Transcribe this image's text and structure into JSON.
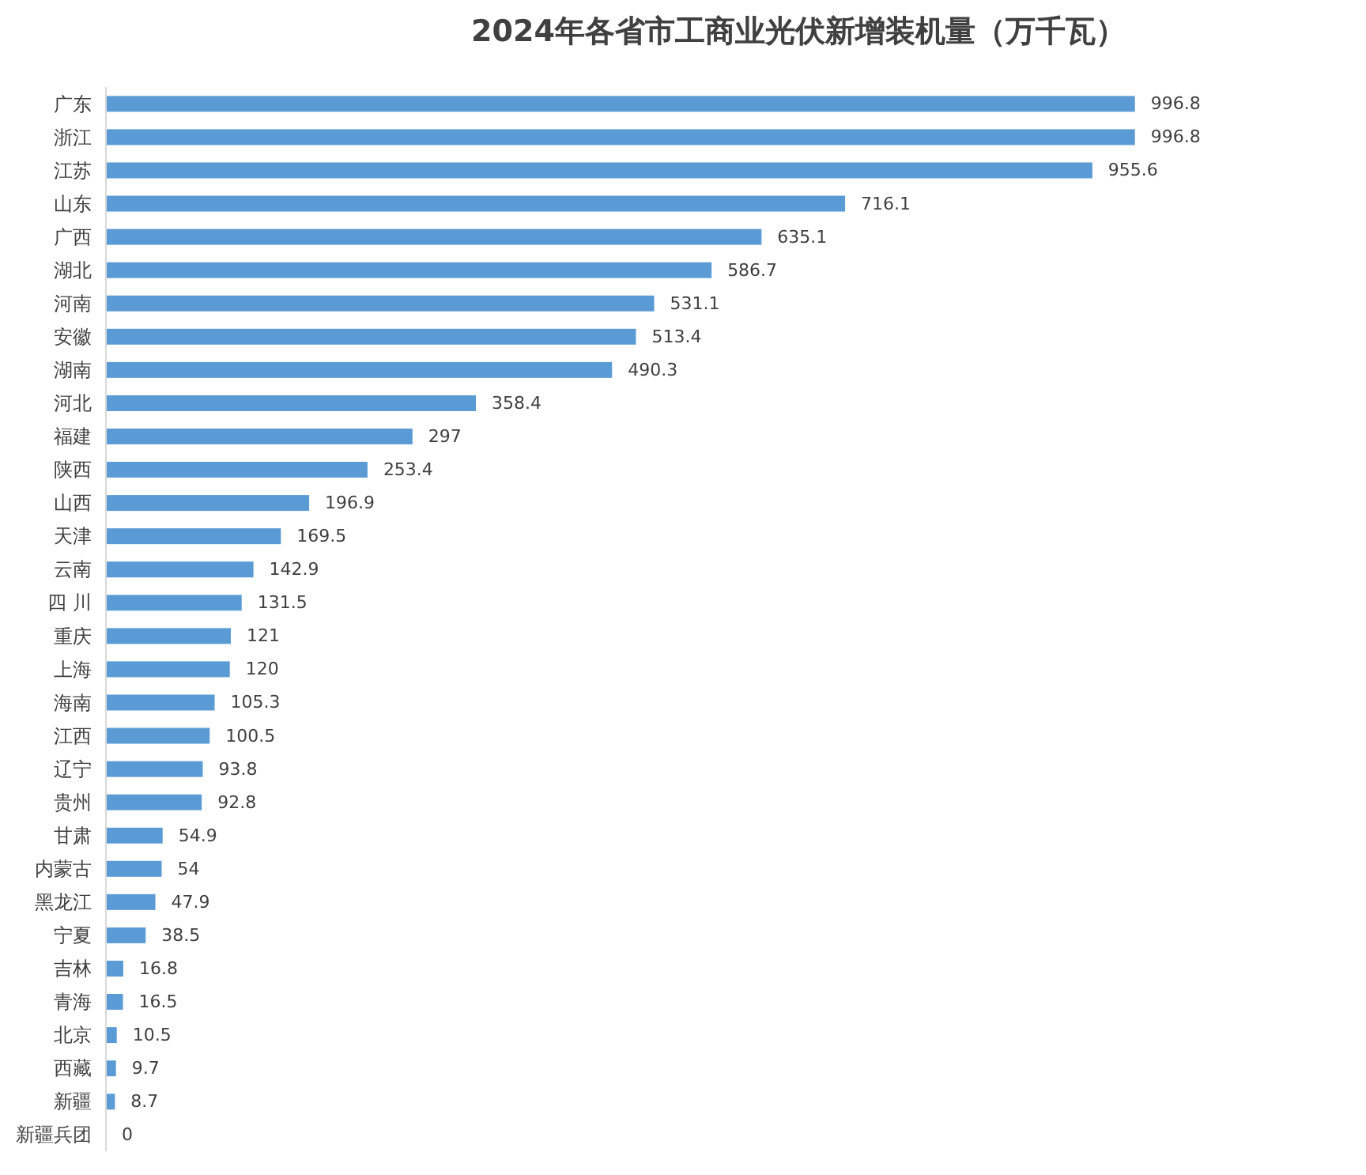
{
  "chart_data": {
    "type": "bar",
    "orientation": "horizontal",
    "title": "2024年各省市工商业光伏新增装机量（万千瓦）",
    "categories": [
      "广东",
      "浙江",
      "江苏",
      "山东",
      "广西",
      "湖北",
      "河南",
      "安徽",
      "湖南",
      "河北",
      "福建",
      "陕西",
      "山西",
      "天津",
      "云南",
      "四 川",
      "重庆",
      "上海",
      "海南",
      "江西",
      "辽宁",
      "贵州",
      "甘肃",
      "内蒙古",
      "黑龙江",
      "宁夏",
      "吉林",
      "青海",
      "北京",
      "西藏",
      "新疆",
      "新疆兵团"
    ],
    "values": [
      996.8,
      996.8,
      955.6,
      716.1,
      635.1,
      586.7,
      531.1,
      513.4,
      490.3,
      358.4,
      297,
      253.4,
      196.9,
      169.5,
      142.9,
      131.5,
      121,
      120,
      105.3,
      100.5,
      93.8,
      92.8,
      54.9,
      54,
      47.9,
      38.5,
      16.8,
      16.5,
      10.5,
      9.7,
      8.7,
      0
    ],
    "color": "#5b9bd5",
    "data_labels": true,
    "tick_labels": "y"
  }
}
